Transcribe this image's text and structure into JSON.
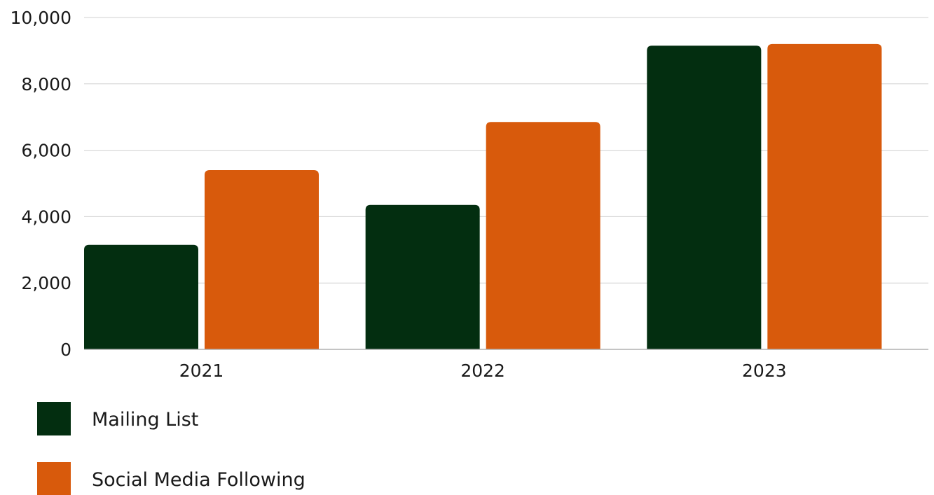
{
  "chart_data": {
    "type": "bar",
    "categories": [
      "2021",
      "2022",
      "2023"
    ],
    "series": [
      {
        "name": "Mailing List",
        "values": [
          3150,
          4350,
          9150
        ],
        "color": "#032e10"
      },
      {
        "name": "Social Media Following",
        "values": [
          5400,
          6850,
          9200
        ],
        "color": "#d85a0c"
      }
    ],
    "ylim": [
      0,
      10000
    ],
    "yticks": [
      0,
      2000,
      4000,
      6000,
      8000,
      10000
    ],
    "ytick_labels": [
      "0",
      "2,000",
      "4,000",
      "6,000",
      "8,000",
      "10,000"
    ],
    "grid": true,
    "legend_position": "bottom-left",
    "title": "",
    "xlabel": "",
    "ylabel": ""
  },
  "colors": {
    "grid": "#d0d0d0",
    "axis": "#b0b0b0"
  }
}
